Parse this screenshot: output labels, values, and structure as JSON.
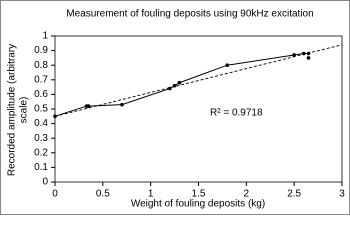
{
  "chart_data": {
    "type": "line",
    "title": "Measurement of fouling deposits using 90kHz excitation",
    "x_label": "Weight of fouling deposits (kg)",
    "y_label": [
      "Recorded amplitude (arbitrary",
      "scale)"
    ],
    "annotation": "R² = 0.9718",
    "series": [
      {
        "color": "#000000",
        "line": true,
        "x": [
          0,
          0.33,
          0.35,
          0.7,
          1.2,
          1.25,
          1.3,
          1.8,
          2.5,
          2.6,
          2.65
        ],
        "values": [
          0.45,
          0.52,
          0.52,
          0.53,
          0.64,
          0.66,
          0.68,
          0.8,
          0.87,
          0.88,
          0.88
        ]
      },
      {
        "color": "#000000",
        "line": false,
        "x": [
          2.65
        ],
        "values": [
          0.85
        ]
      }
    ],
    "trendline": {
      "color": "#000000",
      "dashed": true,
      "x": [
        0,
        3
      ],
      "values": [
        0.45,
        0.94
      ]
    },
    "xlim": [
      0,
      3
    ],
    "xticks": [
      0,
      0.5,
      1,
      1.5,
      2,
      2.5,
      3
    ],
    "ylim": [
      0,
      1
    ],
    "yticks": [
      0,
      0.1,
      0.2,
      0.3,
      0.4,
      0.5,
      0.6,
      0.7,
      0.8,
      0.9,
      1
    ],
    "grid": false
  }
}
